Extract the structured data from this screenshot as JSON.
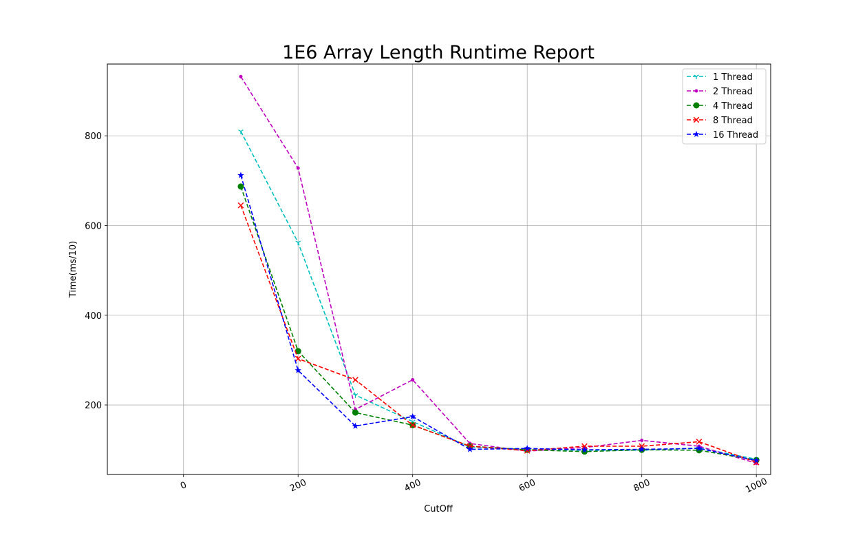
{
  "chart_data": {
    "type": "line",
    "title": "1E6 Array Length Runtime Report",
    "xlabel": "CutOff",
    "ylabel": "Time(ms/10)",
    "xlim": [
      -133,
      1025
    ],
    "ylim": [
      45,
      960
    ],
    "xticks": [
      0,
      200,
      400,
      600,
      800,
      1000
    ],
    "yticks": [
      200,
      400,
      600,
      800
    ],
    "grid": true,
    "legend_position": "top-right",
    "x": [
      100,
      200,
      300,
      400,
      500,
      600,
      700,
      800,
      900,
      1000
    ],
    "series": [
      {
        "name": "1 Thread",
        "color": "#00bfbf",
        "marker": "tri-down",
        "values": [
          810,
          562,
          222,
          163,
          106,
          101,
          99,
          99,
          104,
          79
        ]
      },
      {
        "name": "2 Thread",
        "color": "#bf00bf",
        "marker": "point",
        "values": [
          932,
          728,
          190,
          256,
          114,
          97,
          105,
          121,
          108,
          70
        ]
      },
      {
        "name": "4 Thread",
        "color": "#008000",
        "marker": "circle",
        "values": [
          687,
          320,
          183,
          155,
          108,
          100,
          96,
          100,
          99,
          77
        ]
      },
      {
        "name": "8 Thread",
        "color": "#ff0000",
        "marker": "x",
        "values": [
          645,
          303,
          256,
          155,
          108,
          98,
          108,
          108,
          118,
          72
        ]
      },
      {
        "name": "16 Thread",
        "color": "#0000ff",
        "marker": "star",
        "values": [
          712,
          277,
          153,
          174,
          101,
          103,
          100,
          101,
          103,
          76
        ]
      }
    ]
  }
}
